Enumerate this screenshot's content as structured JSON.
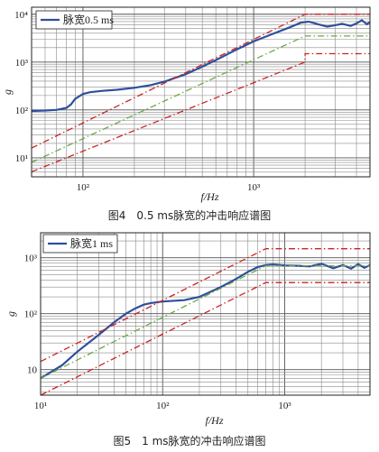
{
  "chart_data": [
    {
      "type": "line",
      "caption": "图4　0.5 ms脉宽的冲击响应谱图",
      "xlabel": "f/Hz",
      "ylabel": "g",
      "xscale": "log",
      "yscale": "log",
      "xlim": [
        50,
        4800
      ],
      "ylim": [
        4,
        14000
      ],
      "xticks": [
        {
          "v": 100,
          "b": "10",
          "e": "2"
        },
        {
          "v": 1000,
          "b": "10",
          "e": "3"
        }
      ],
      "yticks": [
        {
          "v": 10,
          "b": "10",
          "e": "1"
        },
        {
          "v": 100,
          "b": "10",
          "e": "2"
        },
        {
          "v": 1000,
          "b": "10",
          "e": "3"
        },
        {
          "v": 10000,
          "b": "10",
          "e": "4"
        }
      ],
      "grid": true,
      "legend": {
        "position": "top-left",
        "label": "脉宽0.5 ms"
      },
      "series": [
        {
          "name": "脉宽0.5 ms",
          "color": "#2e4f9c",
          "style": "solid",
          "x": [
            50,
            60,
            70,
            80,
            85,
            90,
            100,
            110,
            130,
            160,
            200,
            250,
            300,
            400,
            500,
            600,
            800,
            1000,
            1300,
            1600,
            1900,
            2100,
            2400,
            2700,
            3000,
            3300,
            3700,
            4000,
            4300,
            4600,
            4800
          ],
          "y": [
            95,
            97,
            100,
            110,
            130,
            170,
            215,
            235,
            250,
            265,
            290,
            330,
            390,
            560,
            800,
            1100,
            1850,
            2700,
            3900,
            5200,
            6700,
            7000,
            6100,
            5500,
            5900,
            6300,
            5700,
            6400,
            7500,
            6200,
            6800
          ]
        },
        {
          "color": "#cc2222",
          "style": "dashdot",
          "x": [
            50,
            2000,
            2000,
            4800
          ],
          "y": [
            16,
            10000,
            10000,
            10000
          ]
        },
        {
          "color": "#cc2222",
          "style": "dashdot",
          "x": [
            50,
            2000,
            2000,
            4800
          ],
          "y": [
            5.1,
            1000,
            1500,
            1500
          ]
        },
        {
          "color": "#6aaa44",
          "style": "dashdot",
          "x": [
            50,
            2000,
            4800
          ],
          "y": [
            8,
            3500,
            3500
          ]
        }
      ]
    },
    {
      "type": "line",
      "caption": "图5　1 ms脉宽的冲击响应谱图",
      "xlabel": "f/Hz",
      "ylabel": "g",
      "xscale": "log",
      "yscale": "log",
      "xlim": [
        10,
        5000
      ],
      "ylim": [
        3.5,
        2800
      ],
      "xticks": [
        {
          "v": 10,
          "b": "10",
          "e": "1"
        },
        {
          "v": 100,
          "b": "10",
          "e": "2"
        },
        {
          "v": 1000,
          "b": "10",
          "e": "3"
        }
      ],
      "yticks": [
        {
          "v": 10,
          "b": "10",
          "e": ""
        },
        {
          "v": 100,
          "b": "10",
          "e": "2"
        },
        {
          "v": 1000,
          "b": "10",
          "e": "3"
        }
      ],
      "grid": true,
      "legend": {
        "position": "top-left",
        "label": "脉宽1 ms"
      },
      "series": [
        {
          "name": "脉宽1 ms",
          "color": "#2e4f9c",
          "style": "solid",
          "x": [
            10,
            15,
            20,
            30,
            40,
            50,
            60,
            70,
            80,
            100,
            150,
            200,
            300,
            400,
            500,
            600,
            700,
            800,
            1000,
            1300,
            1600,
            2000,
            2500,
            3000,
            3500,
            4000,
            4500,
            5000
          ],
          "y": [
            7,
            12,
            21,
            42,
            70,
            100,
            125,
            145,
            155,
            165,
            175,
            200,
            300,
            420,
            560,
            680,
            740,
            760,
            730,
            720,
            700,
            780,
            650,
            740,
            640,
            770,
            660,
            740
          ]
        },
        {
          "color": "#cc2222",
          "style": "dashdot",
          "x": [
            10,
            700,
            700,
            5000
          ],
          "y": [
            14,
            1450,
            1450,
            1450
          ]
        },
        {
          "color": "#cc2222",
          "style": "dashdot",
          "x": [
            10,
            700,
            700,
            5000
          ],
          "y": [
            3.5,
            360,
            360,
            360
          ]
        },
        {
          "color": "#6aaa44",
          "style": "dashdot",
          "x": [
            10,
            700,
            5000
          ],
          "y": [
            7,
            720,
            720
          ]
        }
      ]
    }
  ]
}
